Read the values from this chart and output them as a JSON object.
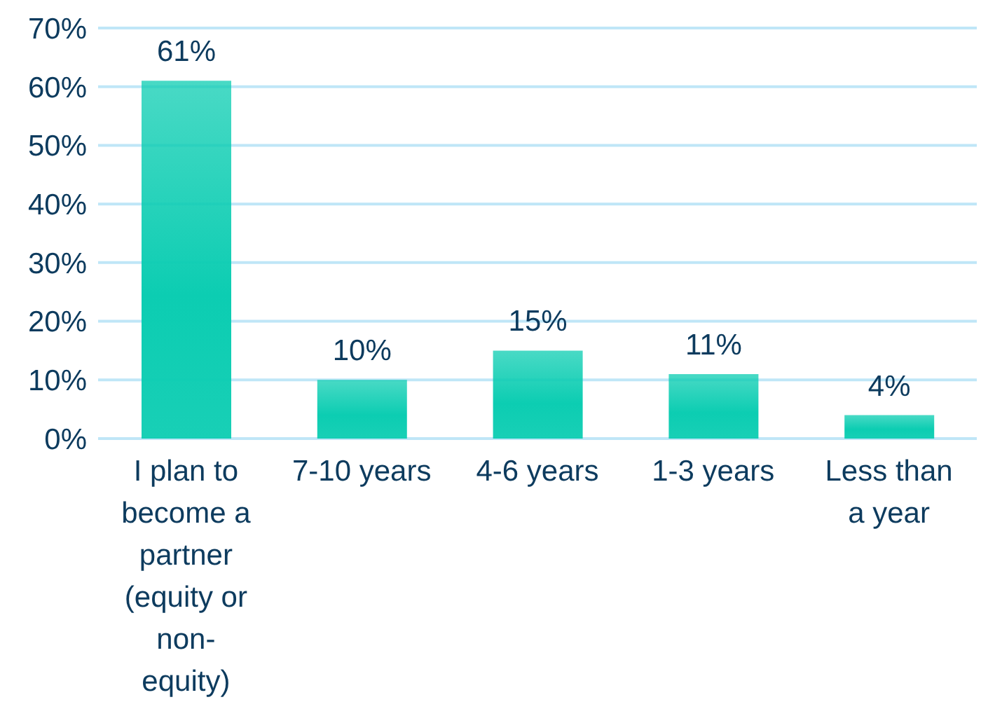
{
  "chart_data": {
    "type": "bar",
    "categories": [
      "I plan to become a partner (equity or non-equity)",
      "7-10 years",
      "4-6 years",
      "1-3 years",
      "Less than a year"
    ],
    "values": [
      61,
      10,
      15,
      11,
      4
    ],
    "value_labels": [
      "61%",
      "10%",
      "15%",
      "11%",
      "4%"
    ],
    "color": "#0ccdb2",
    "ylim": [
      0,
      70
    ],
    "yticks": [
      {
        "value": 0,
        "label": "0%"
      },
      {
        "value": 10,
        "label": "10%"
      },
      {
        "value": 20,
        "label": "20%"
      },
      {
        "value": 30,
        "label": "30%"
      },
      {
        "value": 40,
        "label": "40%"
      },
      {
        "value": 50,
        "label": "50%"
      },
      {
        "value": 60,
        "label": "60%"
      },
      {
        "value": 70,
        "label": "70%"
      }
    ],
    "grid": "y"
  }
}
